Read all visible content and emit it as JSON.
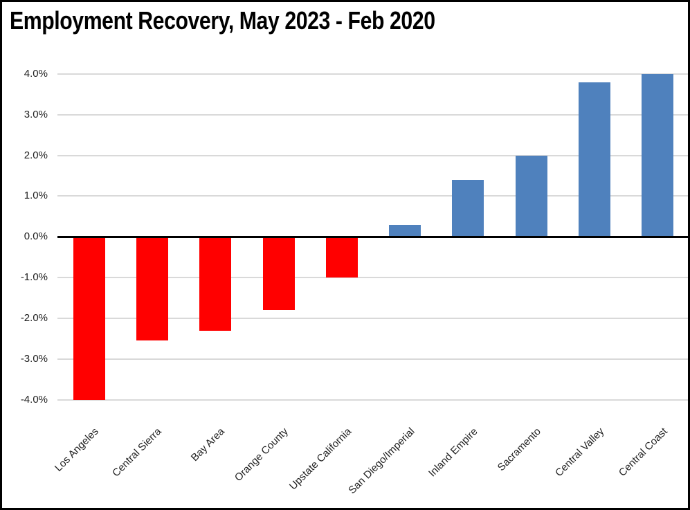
{
  "window": {
    "title": "Employment Recovery, May 2023 - Feb 2020"
  },
  "chart_data": {
    "type": "bar",
    "title": "Employment Recovery, May 2023 - Feb 2020",
    "xlabel": "",
    "ylabel": "",
    "categories": [
      "Los Angeles",
      "Central Sierra",
      "Bay Area",
      "Orange County",
      "Upstate California",
      "San Diego/Imperial",
      "Inland Empire",
      "Sacramento",
      "Central Valley",
      "Central Coast"
    ],
    "values": [
      -4.0,
      -2.55,
      -2.3,
      -1.8,
      -1.0,
      0.3,
      1.4,
      2.0,
      3.8,
      4.0
    ],
    "value_unit": "percent",
    "ylim": [
      -4.0,
      4.0
    ],
    "y_ticks": [
      {
        "value": 4,
        "label": "4.0%"
      },
      {
        "value": 3,
        "label": "3.0%"
      },
      {
        "value": 2,
        "label": "2.0%"
      },
      {
        "value": 1,
        "label": "1.0%"
      },
      {
        "value": 0,
        "label": "0.0%"
      },
      {
        "value": -1,
        "label": "-1.0%"
      },
      {
        "value": -2,
        "label": "-2.0%"
      },
      {
        "value": -3,
        "label": "-3.0%"
      },
      {
        "value": -4,
        "label": "-4.0%"
      }
    ],
    "grid": true,
    "legend": false,
    "x_labels_rotated_degrees": 45,
    "colors": {
      "positive": "#4F81BD",
      "negative": "#FF0000",
      "gridline": "#D9D9D9",
      "axis": "#000000",
      "text": "#1f1f1f"
    }
  }
}
